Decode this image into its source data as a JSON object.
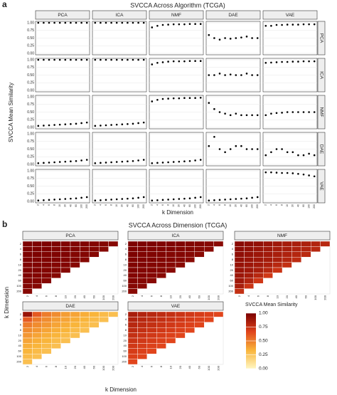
{
  "chart_data": [
    {
      "panel": "a",
      "type": "facet-scatter",
      "title": "SVCCA Across Algorithm (TCGA)",
      "x_label": "k Dimension",
      "y_label": "SVCCA Mean Similarity",
      "columns": [
        "PCA",
        "ICA",
        "NMF",
        "DAE",
        "VAE"
      ],
      "rows": [
        "PCA",
        "ICA",
        "NMF",
        "DAE",
        "VAE"
      ],
      "categories": [
        "2",
        "4",
        "6",
        "8",
        "10",
        "20",
        "40",
        "60",
        "100",
        "200"
      ],
      "ylim": [
        0,
        1
      ],
      "yticks": [
        {
          "value": 0,
          "label": "0.00"
        },
        {
          "value": 0.25,
          "label": "0.25"
        },
        {
          "value": 0.5,
          "label": "0.50"
        },
        {
          "value": 0.75,
          "label": "0.75"
        },
        {
          "value": 1,
          "label": "1.00"
        }
      ],
      "color": "#000000",
      "facets": [
        [
          [
            1,
            1,
            1,
            1,
            1,
            1,
            1,
            1,
            1,
            1
          ],
          [
            1,
            1,
            1,
            1,
            1,
            1,
            1,
            1,
            1,
            1
          ],
          [
            0.85,
            0.9,
            0.93,
            0.94,
            0.95,
            0.95,
            0.95,
            0.96,
            0.96,
            0.96
          ],
          [
            0.6,
            0.5,
            0.45,
            0.5,
            0.48,
            0.5,
            0.52,
            0.55,
            0.5,
            0.5
          ],
          [
            0.9,
            0.9,
            0.93,
            0.93,
            0.94,
            0.94,
            0.94,
            0.95,
            0.95,
            0.95
          ]
        ],
        [
          [
            1,
            1,
            1,
            1,
            1,
            1,
            1,
            1,
            1,
            1
          ],
          [
            1,
            1,
            1,
            1,
            1,
            1,
            1,
            1,
            1,
            1
          ],
          [
            0.85,
            0.9,
            0.92,
            0.94,
            0.95,
            0.95,
            0.95,
            0.96,
            0.96,
            0.96
          ],
          [
            0.5,
            0.5,
            0.55,
            0.5,
            0.52,
            0.5,
            0.5,
            0.55,
            0.5,
            0.5
          ],
          [
            0.9,
            0.91,
            0.92,
            0.93,
            0.93,
            0.94,
            0.94,
            0.95,
            0.95,
            0.95
          ]
        ],
        [
          [
            0.05,
            0.06,
            0.07,
            0.08,
            0.09,
            0.1,
            0.11,
            0.12,
            0.14,
            0.16
          ],
          [
            0.05,
            0.06,
            0.07,
            0.08,
            0.09,
            0.1,
            0.11,
            0.12,
            0.14,
            0.16
          ],
          [
            0.85,
            0.9,
            0.93,
            0.94,
            0.95,
            0.95,
            0.96,
            0.96,
            0.96,
            0.97
          ],
          [
            0.8,
            0.6,
            0.5,
            0.45,
            0.4,
            0.45,
            0.4,
            0.4,
            0.4,
            0.4
          ],
          [
            0.4,
            0.45,
            0.47,
            0.48,
            0.5,
            0.5,
            0.5,
            0.5,
            0.5,
            0.5
          ]
        ],
        [
          [
            0.04,
            0.05,
            0.06,
            0.07,
            0.08,
            0.09,
            0.1,
            0.11,
            0.13,
            0.15
          ],
          [
            0.04,
            0.05,
            0.06,
            0.07,
            0.08,
            0.09,
            0.1,
            0.11,
            0.13,
            0.15
          ],
          [
            0.04,
            0.05,
            0.06,
            0.07,
            0.08,
            0.09,
            0.1,
            0.11,
            0.13,
            0.15
          ],
          [
            0.6,
            0.9,
            0.5,
            0.4,
            0.5,
            0.6,
            0.6,
            0.5,
            0.5,
            0.5
          ],
          [
            0.3,
            0.4,
            0.5,
            0.5,
            0.4,
            0.4,
            0.3,
            0.3,
            0.35,
            0.3
          ]
        ],
        [
          [
            0.03,
            0.04,
            0.05,
            0.06,
            0.07,
            0.08,
            0.09,
            0.1,
            0.12,
            0.14
          ],
          [
            0.03,
            0.04,
            0.05,
            0.06,
            0.07,
            0.08,
            0.09,
            0.1,
            0.12,
            0.14
          ],
          [
            0.03,
            0.04,
            0.05,
            0.06,
            0.07,
            0.08,
            0.09,
            0.1,
            0.12,
            0.14
          ],
          [
            0.03,
            0.04,
            0.05,
            0.06,
            0.07,
            0.08,
            0.09,
            0.1,
            0.12,
            0.14
          ],
          [
            0.95,
            0.95,
            0.94,
            0.93,
            0.93,
            0.92,
            0.9,
            0.88,
            0.85,
            0.82
          ]
        ]
      ]
    },
    {
      "panel": "b",
      "type": "heatmap",
      "title": "SVCCA Across Dimension (TCGA)",
      "x_label": "k Dimension",
      "y_label": "k Dimension",
      "categories": [
        "2",
        "4",
        "6",
        "8",
        "10",
        "20",
        "40",
        "60",
        "100",
        "200"
      ],
      "panels": [
        {
          "name": "PCA",
          "values": [
            [
              0.99,
              0.99,
              0.99,
              0.99,
              0.98,
              0.98,
              0.98,
              0.97,
              0.97,
              0.96
            ],
            [
              0.99,
              0.99,
              0.99,
              0.98,
              0.98,
              0.98,
              0.97,
              0.97,
              0.96
            ],
            [
              0.99,
              0.99,
              0.98,
              0.98,
              0.98,
              0.97,
              0.97,
              0.96
            ],
            [
              0.99,
              0.98,
              0.98,
              0.98,
              0.97,
              0.97,
              0.96
            ],
            [
              0.98,
              0.98,
              0.98,
              0.97,
              0.97,
              0.96
            ],
            [
              0.98,
              0.98,
              0.97,
              0.97,
              0.96
            ],
            [
              0.98,
              0.97,
              0.97,
              0.96
            ],
            [
              0.97,
              0.97,
              0.96
            ],
            [
              0.97,
              0.96
            ],
            [
              0.96
            ]
          ]
        },
        {
          "name": "ICA",
          "values": [
            [
              0.99,
              0.99,
              0.99,
              0.98,
              0.98,
              0.98,
              0.97,
              0.97,
              0.96,
              0.95
            ],
            [
              0.99,
              0.99,
              0.98,
              0.98,
              0.98,
              0.97,
              0.97,
              0.96,
              0.95
            ],
            [
              0.99,
              0.98,
              0.98,
              0.98,
              0.97,
              0.97,
              0.96,
              0.95
            ],
            [
              0.98,
              0.98,
              0.98,
              0.97,
              0.97,
              0.96,
              0.95
            ],
            [
              0.98,
              0.98,
              0.97,
              0.97,
              0.96,
              0.95
            ],
            [
              0.98,
              0.97,
              0.97,
              0.96,
              0.95
            ],
            [
              0.97,
              0.97,
              0.96,
              0.95
            ],
            [
              0.97,
              0.96,
              0.95
            ],
            [
              0.96,
              0.95
            ],
            [
              0.95
            ]
          ]
        },
        {
          "name": "NMF",
          "values": [
            [
              0.95,
              0.93,
              0.92,
              0.9,
              0.88,
              0.86,
              0.85,
              0.84,
              0.82,
              0.8
            ],
            [
              0.94,
              0.92,
              0.9,
              0.88,
              0.86,
              0.85,
              0.83,
              0.82,
              0.8
            ],
            [
              0.93,
              0.91,
              0.89,
              0.87,
              0.85,
              0.83,
              0.81,
              0.79
            ],
            [
              0.92,
              0.9,
              0.88,
              0.86,
              0.84,
              0.81,
              0.78
            ],
            [
              0.91,
              0.89,
              0.87,
              0.84,
              0.8,
              0.76
            ],
            [
              0.9,
              0.88,
              0.85,
              0.8,
              0.74
            ],
            [
              0.89,
              0.86,
              0.8,
              0.72
            ],
            [
              0.88,
              0.82,
              0.72
            ],
            [
              0.85,
              0.74
            ],
            [
              0.76
            ]
          ]
        },
        {
          "name": "DAE",
          "values": [
            [
              0.9,
              0.6,
              0.5,
              0.45,
              0.4,
              0.38,
              0.35,
              0.33,
              0.3,
              0.28
            ],
            [
              0.6,
              0.5,
              0.45,
              0.4,
              0.38,
              0.35,
              0.33,
              0.3,
              0.28
            ],
            [
              0.5,
              0.45,
              0.42,
              0.38,
              0.35,
              0.33,
              0.3,
              0.28
            ],
            [
              0.45,
              0.42,
              0.38,
              0.35,
              0.33,
              0.3,
              0.28
            ],
            [
              0.42,
              0.38,
              0.35,
              0.33,
              0.3,
              0.28
            ],
            [
              0.38,
              0.35,
              0.33,
              0.3,
              0.28
            ],
            [
              0.35,
              0.33,
              0.3,
              0.28
            ],
            [
              0.33,
              0.3,
              0.28
            ],
            [
              0.3,
              0.28
            ],
            [
              0.28
            ]
          ]
        },
        {
          "name": "VAE",
          "values": [
            [
              0.85,
              0.82,
              0.8,
              0.78,
              0.76,
              0.74,
              0.72,
              0.7,
              0.68,
              0.66
            ],
            [
              0.82,
              0.8,
              0.78,
              0.76,
              0.74,
              0.72,
              0.7,
              0.68,
              0.66
            ],
            [
              0.8,
              0.78,
              0.76,
              0.74,
              0.72,
              0.7,
              0.68,
              0.66
            ],
            [
              0.78,
              0.76,
              0.74,
              0.72,
              0.7,
              0.68,
              0.66
            ],
            [
              0.76,
              0.74,
              0.72,
              0.7,
              0.68,
              0.66
            ],
            [
              0.74,
              0.72,
              0.7,
              0.68,
              0.66
            ],
            [
              0.72,
              0.7,
              0.68,
              0.66
            ],
            [
              0.7,
              0.68,
              0.66
            ],
            [
              0.68,
              0.66
            ],
            [
              0.66
            ]
          ]
        }
      ],
      "colorbar": {
        "title": "SVCCA Mean Similarity",
        "lim": [
          0,
          1
        ],
        "ticks": [
          {
            "value": 0,
            "label": "0.00"
          },
          {
            "value": 0.25,
            "label": "0.25"
          },
          {
            "value": 0.5,
            "label": "0.50"
          },
          {
            "value": 0.75,
            "label": "0.75"
          },
          {
            "value": 1,
            "label": "1.00"
          }
        ],
        "colors": [
          "#fff7c2",
          "#f9b43a",
          "#e0431b",
          "#7a0000"
        ]
      }
    }
  ]
}
